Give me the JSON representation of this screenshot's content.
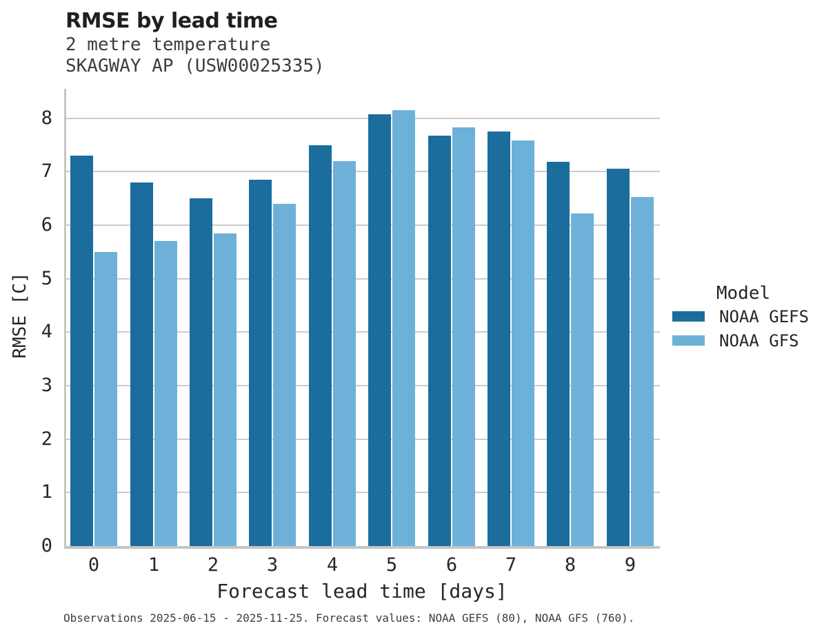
{
  "header": {
    "title": "RMSE by lead time",
    "subtitle_line1": "2 metre temperature",
    "subtitle_line2": "SKAGWAY AP (USW00025335)"
  },
  "chart_data": {
    "type": "bar",
    "title": "RMSE by lead time",
    "subtitle": [
      "2 metre temperature",
      "SKAGWAY AP (USW00025335)"
    ],
    "categories": [
      "0",
      "1",
      "2",
      "3",
      "4",
      "5",
      "6",
      "7",
      "8",
      "9"
    ],
    "series": [
      {
        "name": "NOAA GEFS",
        "color": "#1b6d9e",
        "values": [
          7.3,
          6.8,
          6.5,
          6.85,
          7.5,
          8.08,
          7.68,
          7.75,
          7.18,
          7.05
        ]
      },
      {
        "name": "NOAA GFS",
        "color": "#6db1d8",
        "values": [
          5.5,
          5.7,
          5.85,
          6.4,
          7.2,
          8.15,
          7.83,
          7.58,
          6.22,
          6.53
        ]
      }
    ],
    "xlabel": "Forecast lead time [days]",
    "ylabel": "RMSE [C]",
    "ylim": [
      0,
      8.55
    ],
    "yticks": [
      0,
      1,
      2,
      3,
      4,
      5,
      6,
      7,
      8
    ],
    "grid": "horizontal",
    "legend": {
      "title": "Model",
      "position": "right"
    }
  },
  "legend": {
    "title": "Model",
    "items": [
      {
        "label": "NOAA GEFS",
        "color": "#1b6d9e"
      },
      {
        "label": "NOAA GFS",
        "color": "#6db1d8"
      }
    ]
  },
  "footer": {
    "note": "Observations 2025-06-15 - 2025-11-25. Forecast values: NOAA GEFS (80), NOAA GFS (760)."
  },
  "colors": {
    "grid": "#cccccc",
    "spine": "#c5c5c5",
    "title_text": "#1f1f1f",
    "body_text": "#262626",
    "muted_text": "#3d3d3d",
    "background": "#ffffff"
  }
}
